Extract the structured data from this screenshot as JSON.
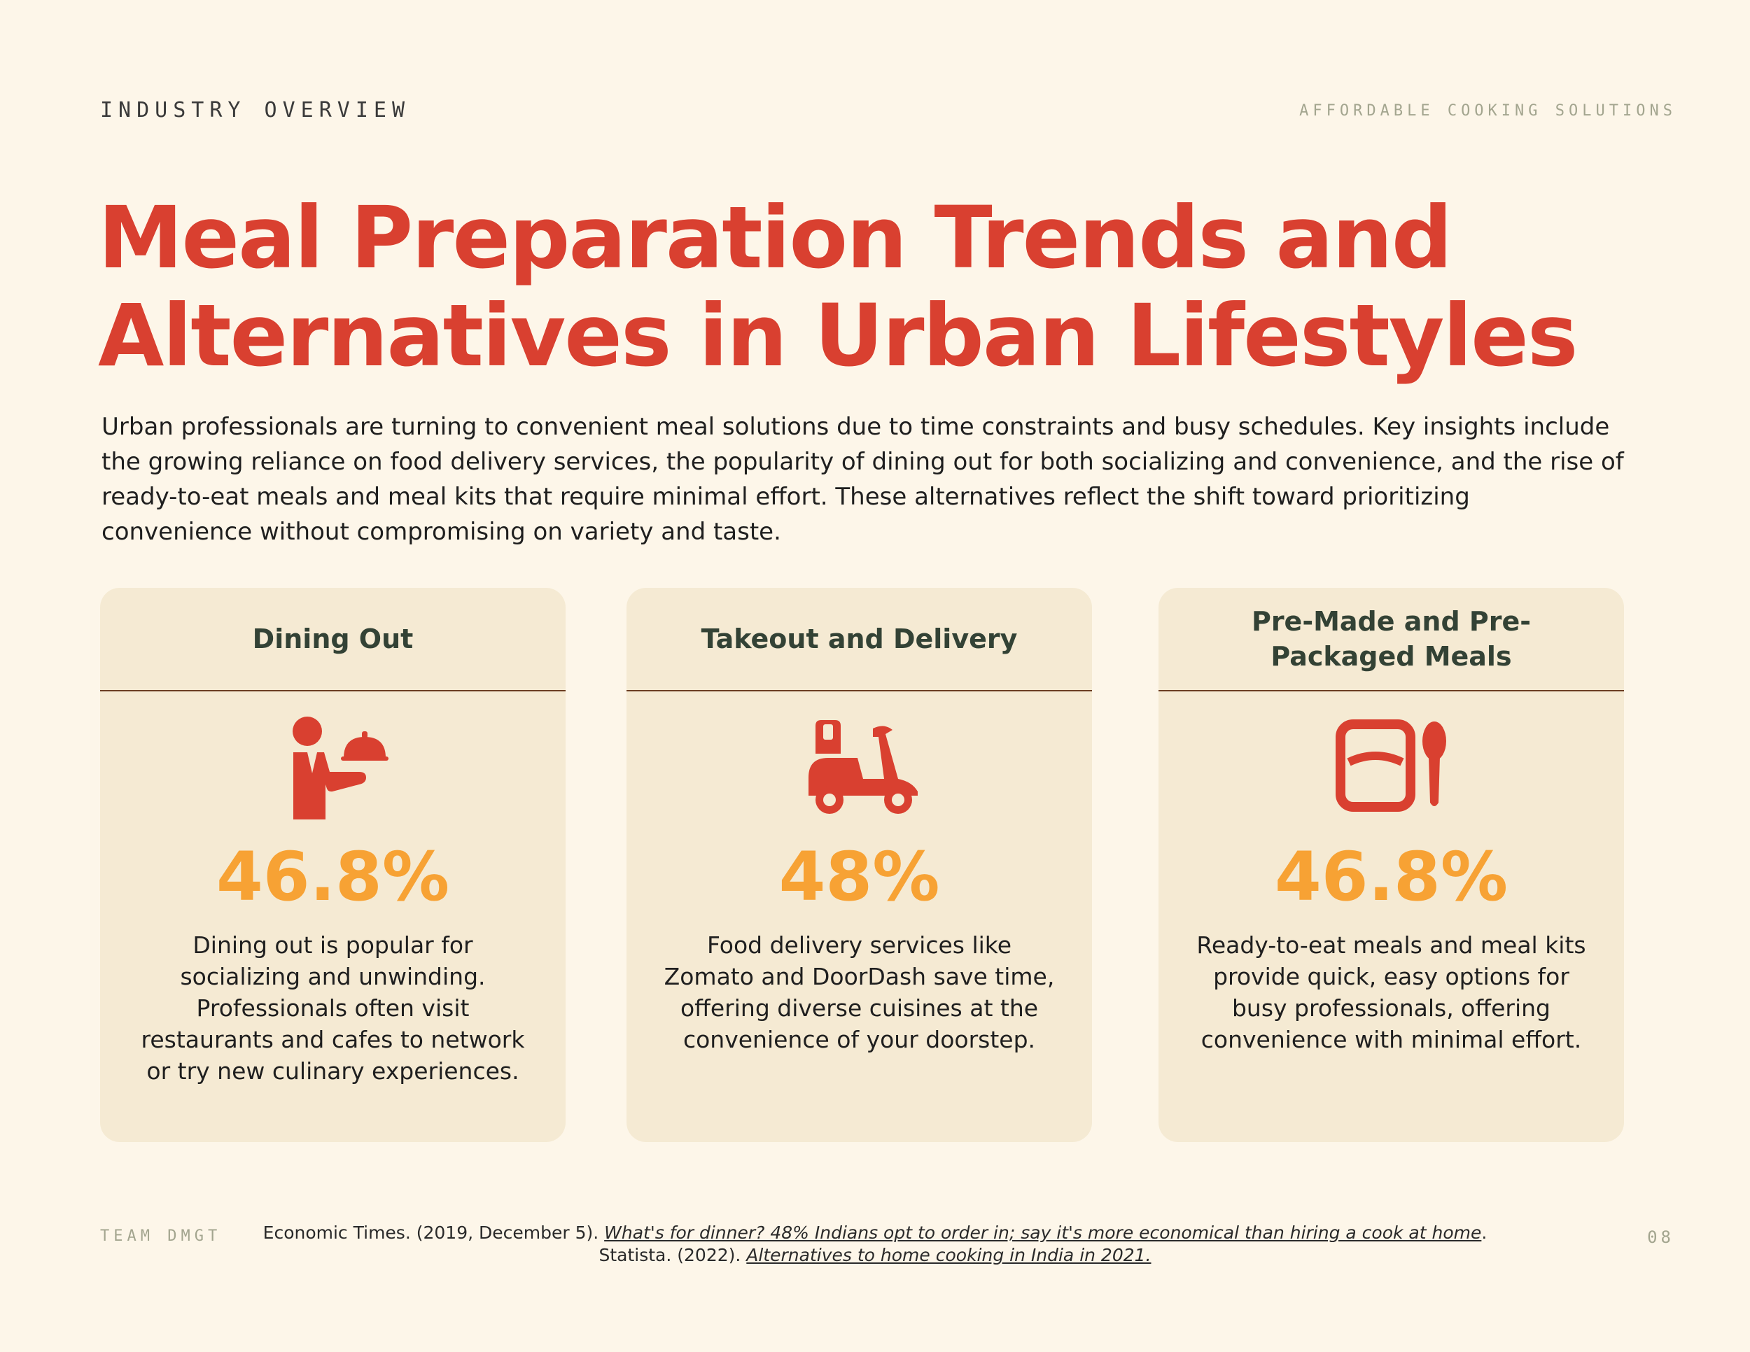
{
  "header": {
    "section_label": "INDUSTRY OVERVIEW",
    "deck_title": "AFFORDABLE COOKING SOLUTIONS"
  },
  "title": {
    "line1": "Meal Preparation Trends and",
    "line2": "Alternatives in Urban Lifestyles"
  },
  "intro": "Urban professionals are turning to convenient meal solutions due to time constraints and busy schedules. Key insights include the growing reliance on food delivery services, the popularity of dining out for both socializing and convenience, and the rise of ready-to-eat meals and meal kits that require minimal effort. These alternatives reflect the shift toward prioritizing convenience without compromising on variety and taste.",
  "colors": {
    "accent_red": "#d94030",
    "accent_orange": "#f7a234",
    "heading_green": "#334235",
    "card_bg": "#f5ead3",
    "page_bg": "#fdf6e9"
  },
  "cards": [
    {
      "heading": "Dining Out",
      "icon": "waiter-serving-icon",
      "value": "46.8%",
      "description": "Dining out is popular for socializing and unwinding. Professionals often visit restaurants and cafes to network or try new culinary experiences."
    },
    {
      "heading": "Takeout and Delivery",
      "icon": "delivery-scooter-icon",
      "value": "48%",
      "description": "Food delivery services like Zomato and DoorDash save time, offering diverse cuisines at the convenience of your doorstep."
    },
    {
      "heading": "Pre-Made and Pre-Packaged Meals",
      "icon": "meal-box-spoon-icon",
      "value": "46.8%",
      "description": "Ready-to-eat meals and meal kits provide quick, easy options for busy professionals, offering convenience with minimal effort."
    }
  ],
  "footer": {
    "team": "TEAM DMGT",
    "page_number": "08",
    "citation1_prefix": "Economic Times. (2019, December 5). ",
    "citation1_link": "What's for dinner? 48% Indians opt to order in; say it's more economical than hiring a cook at home",
    "citation1_suffix": ".",
    "citation2_prefix": "Statista. (2022). ",
    "citation2_link": "Alternatives to home cooking in India in 2021."
  }
}
